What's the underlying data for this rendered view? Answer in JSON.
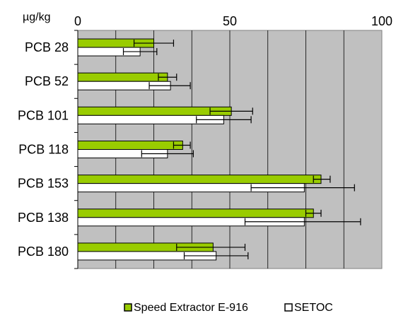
{
  "chart_data": {
    "type": "bar",
    "orientation": "horizontal",
    "unit_label": "µg/kg",
    "categories": [
      "PCB 28",
      "PCB 52",
      "PCB 101",
      "PCB 118",
      "PCB 153",
      "PCB 138",
      "PCB 180"
    ],
    "xlim": [
      0,
      100
    ],
    "xticks": [
      "0",
      "50",
      "100"
    ],
    "grid": true,
    "legend_position": "bottom-center",
    "series": [
      {
        "name": "Speed Extractor E-916",
        "color": "#99cc00",
        "values": [
          25,
          29.5,
          50.5,
          34.5,
          80,
          77.5,
          44.5
        ],
        "error_low": [
          18.5,
          26.5,
          43.5,
          31.5,
          77.5,
          75,
          32.5
        ],
        "error_high": [
          31.5,
          32.5,
          57.5,
          37,
          83,
          80,
          55
        ]
      },
      {
        "name": "SETOC",
        "color": "#ffffff",
        "values": [
          20.5,
          30.5,
          48,
          29.5,
          74.5,
          74.5,
          45.5
        ],
        "error_low": [
          15,
          23.5,
          39,
          21,
          57,
          55,
          35
        ],
        "error_high": [
          26,
          37,
          57,
          38,
          91,
          93,
          56
        ]
      }
    ]
  }
}
